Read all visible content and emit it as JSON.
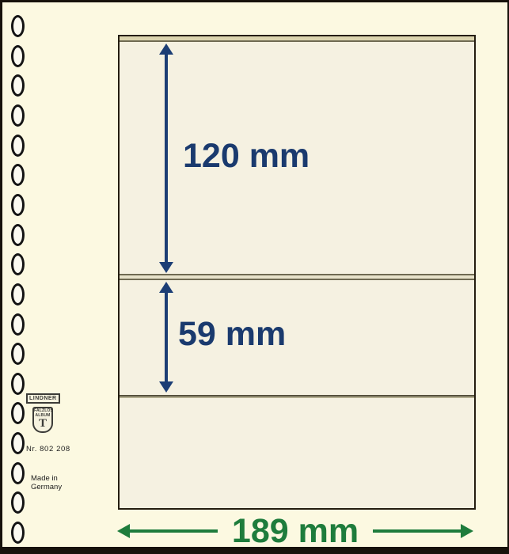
{
  "product_sheet": {
    "type": "stamp-album-blank-page-diagram",
    "brand": {
      "name": "LINDNER",
      "shield_text_top": "FALZLOS",
      "shield_text_bottom": "ALBUM",
      "shield_monogram": "T"
    },
    "labels": {
      "product_number": "Nr. 802 208",
      "made_in_line1": "Made in",
      "made_in_line2": "Germany"
    },
    "dimensions": {
      "pocket1_height": "120 mm",
      "pocket2_height": "59 mm",
      "page_width": "189 mm"
    },
    "binder_holes": {
      "count": 18,
      "glyph": "0"
    },
    "colors": {
      "background": "#fcf9e1",
      "page_fill": "#f5f1e1",
      "page_border": "#241d10",
      "strip_line": "#6f6a52",
      "dimension_blue": "#1a3a6e",
      "dimension_green": "#1e7c3c"
    }
  }
}
